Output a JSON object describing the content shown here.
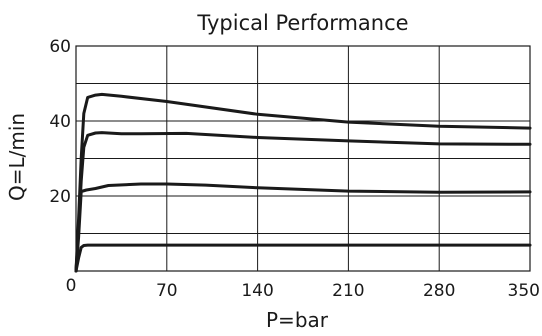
{
  "chart_data": {
    "type": "line",
    "title": "Typical Performance",
    "xlabel": "P=bar",
    "ylabel": "Q=L/min",
    "xlim": [
      0,
      350
    ],
    "ylim": [
      0,
      60
    ],
    "xticks": [
      0,
      70,
      140,
      210,
      280,
      350
    ],
    "yticks": [
      20,
      40,
      60
    ],
    "ygrid": [
      10,
      20,
      30,
      40,
      50
    ],
    "grid": true,
    "series": [
      {
        "x": [
          0,
          2,
          4,
          6,
          9,
          15,
          20,
          35,
          70,
          140,
          210,
          280,
          350
        ],
        "y": [
          0,
          14,
          30,
          42,
          46.3,
          46.9,
          47.1,
          46.6,
          45.2,
          41.8,
          39.7,
          38.6,
          38.1
        ]
      },
      {
        "x": [
          0,
          2,
          4,
          6,
          9,
          15,
          20,
          35,
          50,
          85,
          140,
          210,
          280,
          350
        ],
        "y": [
          0,
          11,
          24,
          33,
          36.2,
          36.8,
          36.9,
          36.6,
          36.6,
          36.7,
          35.6,
          34.7,
          33.9,
          33.8
        ]
      },
      {
        "x": [
          0,
          2,
          4,
          8,
          15,
          25,
          50,
          70,
          100,
          140,
          210,
          280,
          350
        ],
        "y": [
          0,
          9,
          21.2,
          21.6,
          22.0,
          22.8,
          23.2,
          23.2,
          22.9,
          22.2,
          21.3,
          21.0,
          21.1
        ]
      },
      {
        "x": [
          0,
          2,
          4,
          6,
          9,
          15,
          70,
          140,
          210,
          280,
          350
        ],
        "y": [
          0,
          3.5,
          6.3,
          6.8,
          6.9,
          6.9,
          6.9,
          6.9,
          6.9,
          6.9,
          6.9
        ]
      }
    ]
  }
}
